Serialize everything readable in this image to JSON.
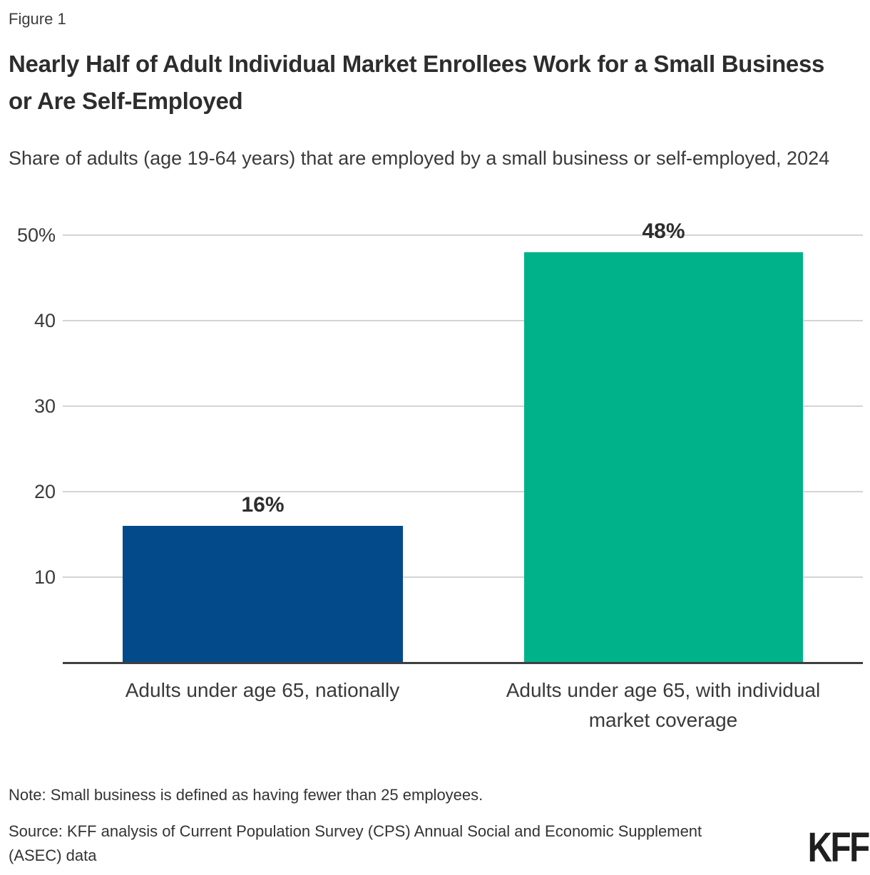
{
  "figure_label": "Figure 1",
  "title": "Nearly Half of Adult Individual Market Enrollees Work for a Small Business or Are Self-Employed",
  "subtitle": "Share of adults (age 19-64 years) that are employed by a small business or self-employed, 2024",
  "note": "Note: Small business is defined as having fewer than 25 employees.",
  "source": "Source: KFF analysis of Current Population Survey (CPS) Annual Social and Economic Supplement (ASEC) data",
  "logo_text": "KFF",
  "colors": {
    "bar_blue": "#034A8A",
    "bar_teal": "#00B289",
    "gridline": "#D4D4D4",
    "axis_line": "#3F3F3F",
    "title_text": "#2D2D2D",
    "body_text": "#3A3A3A"
  },
  "chart_data": {
    "type": "bar",
    "title": "Nearly Half of Adult Individual Market Enrollees Work for a Small Business or Are Self-Employed",
    "subtitle": "Share of adults (age 19-64 years) that are employed by a small business or self-employed, 2024",
    "categories": [
      "Adults under age 65, nationally",
      "Adults under age 65, with individual market coverage"
    ],
    "values": [
      16,
      48
    ],
    "value_labels": [
      "16%",
      "48%"
    ],
    "bar_colors": [
      "#034A8A",
      "#00B289"
    ],
    "xlabel": "",
    "ylabel": "",
    "ylim": [
      0,
      50
    ],
    "yticks": [
      "50%",
      "40",
      "30",
      "20",
      "10"
    ],
    "ytick_values": [
      50,
      40,
      30,
      20,
      10
    ],
    "grid": true,
    "legend_position": "none"
  }
}
